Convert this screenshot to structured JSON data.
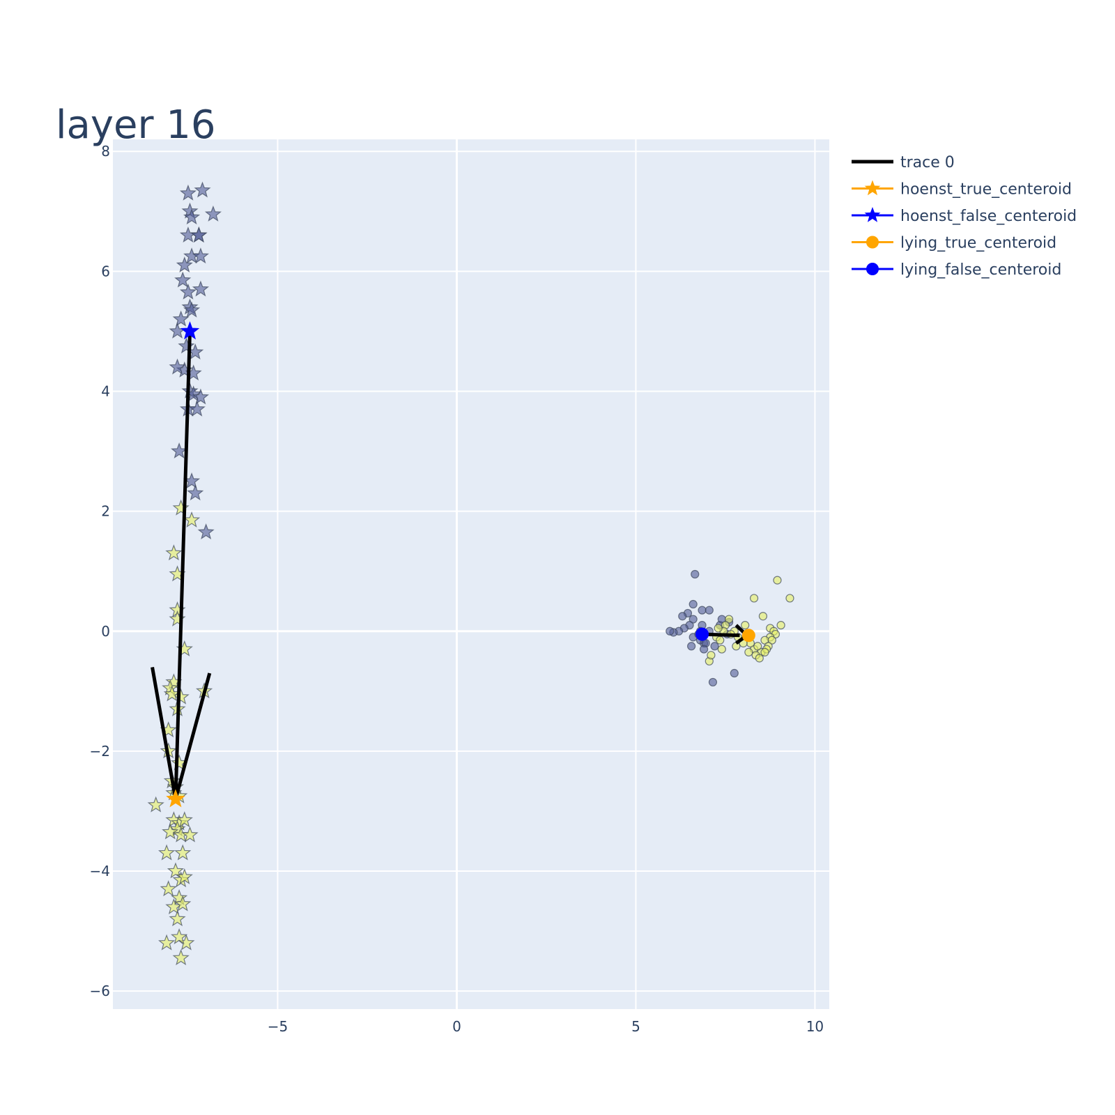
{
  "chart_data": {
    "type": "scatter",
    "title": "layer 16",
    "xlim": [
      -9.6,
      10.4
    ],
    "ylim": [
      -6.3,
      8.2
    ],
    "x_ticks": [
      -5,
      0,
      5,
      10
    ],
    "y_ticks": [
      -6,
      -4,
      -2,
      0,
      2,
      4,
      6,
      8
    ],
    "x_tick_labels": [
      "−5",
      "0",
      "5",
      "10"
    ],
    "y_tick_labels": [
      "−6",
      "−4",
      "−2",
      "0",
      "2",
      "4",
      "6",
      "8"
    ],
    "grid": true,
    "legend_position": "right",
    "plot_background": "#e5ecf6",
    "legend": [
      {
        "name": "trace 0",
        "color": "#000000",
        "marker": "line"
      },
      {
        "name": "hoenst_true_centeroid",
        "color": "#ffa500",
        "marker": "star"
      },
      {
        "name": "hoenst_false_centeroid",
        "color": "#0000ff",
        "marker": "star"
      },
      {
        "name": "lying_true_centeroid",
        "color": "#ffa500",
        "marker": "circle"
      },
      {
        "name": "lying_false_centeroid",
        "color": "#0000ff",
        "marker": "circle"
      }
    ],
    "arrows": [
      {
        "color": "#000000",
        "lines": [
          [
            [
              -7.45,
              5.0
            ],
            [
              -7.85,
              -2.8
            ]
          ],
          [
            [
              -8.5,
              -0.6
            ],
            [
              -7.85,
              -2.8
            ]
          ],
          [
            [
              -6.9,
              -0.7
            ],
            [
              -7.85,
              -2.8
            ]
          ]
        ]
      },
      {
        "color": "#000000",
        "lines": [
          [
            [
              6.85,
              -0.05
            ],
            [
              7.9,
              -0.07
            ]
          ],
          [
            [
              7.8,
              0.1
            ],
            [
              8.1,
              -0.07
            ]
          ],
          [
            [
              7.8,
              -0.2
            ],
            [
              8.1,
              -0.07
            ]
          ]
        ]
      }
    ],
    "honest_false_points": {
      "marker": "star",
      "color": "rgba(80,92,150,0.6)",
      "x": [
        -7.1,
        -7.5,
        -6.8,
        -7.45,
        -7.4,
        -7.2,
        -7.5,
        -7.2,
        -7.4,
        -7.6,
        -7.15,
        -7.65,
        -7.5,
        -7.15,
        -7.45,
        -7.7,
        -7.4,
        -7.8,
        -7.55,
        -7.3,
        -7.6,
        -7.35,
        -7.8,
        -7.45,
        -7.35,
        -7.15,
        -7.5,
        -7.25,
        -7.75,
        -7.4,
        -7.3,
        -7.0
      ],
      "y": [
        7.35,
        7.3,
        6.95,
        7.0,
        6.9,
        6.6,
        6.6,
        6.6,
        6.25,
        6.1,
        6.25,
        5.85,
        5.65,
        5.7,
        5.4,
        5.2,
        5.35,
        5.0,
        4.75,
        4.65,
        4.35,
        4.3,
        4.4,
        4.0,
        3.95,
        3.9,
        3.7,
        3.7,
        3.0,
        2.5,
        2.3,
        1.65
      ]
    },
    "honest_true_points": {
      "marker": "star",
      "color": "rgba(230,240,100,0.6)",
      "x": [
        -7.7,
        -7.4,
        -7.9,
        -7.8,
        -7.8,
        -7.8,
        -7.6,
        -7.9,
        -8.0,
        -7.7,
        -7.95,
        -7.05,
        -7.8,
        -8.05,
        -8.05,
        -7.75,
        -7.95,
        -7.9,
        -7.75,
        -7.85,
        -8.4,
        -7.9,
        -7.75,
        -7.6,
        -7.8,
        -8.0,
        -7.7,
        -7.45,
        -7.65,
        -8.1,
        -7.85,
        -7.7,
        -7.6,
        -8.05,
        -7.75,
        -7.9,
        -7.65,
        -7.8,
        -8.1,
        -7.55,
        -7.75,
        -7.7
      ],
      "y": [
        2.05,
        1.85,
        1.3,
        0.95,
        0.35,
        0.2,
        -0.3,
        -0.85,
        -0.95,
        -1.1,
        -1.05,
        -1.0,
        -1.3,
        -1.65,
        -2.0,
        -2.2,
        -2.5,
        -2.7,
        -2.75,
        -2.6,
        -2.9,
        -3.15,
        -3.2,
        -3.15,
        -3.3,
        -3.35,
        -3.4,
        -3.4,
        -3.7,
        -3.7,
        -4.0,
        -4.15,
        -4.1,
        -4.3,
        -4.45,
        -4.6,
        -4.55,
        -4.8,
        -5.2,
        -5.2,
        -5.1,
        -5.45
      ]
    },
    "lying_false_points": {
      "marker": "circle",
      "color": "rgba(80,92,150,0.6)",
      "x": [
        6.65,
        6.6,
        6.45,
        6.3,
        6.85,
        6.6,
        6.5,
        6.35,
        6.2,
        6.05,
        5.95,
        6.6,
        6.8,
        6.55,
        6.9,
        7.2,
        7.05,
        7.6,
        7.35,
        7.05,
        7.55,
        7.15,
        7.75,
        6.95,
        6.75,
        6.85,
        6.9,
        7.4,
        6.8
      ],
      "y": [
        0.95,
        0.45,
        0.3,
        0.25,
        0.35,
        0.2,
        0.1,
        0.05,
        0.0,
        -0.02,
        0.0,
        -0.1,
        -0.15,
        -0.25,
        -0.2,
        -0.25,
        0.35,
        0.15,
        0.1,
        0.0,
        -0.05,
        -0.85,
        -0.7,
        -0.2,
        -0.05,
        0.1,
        -0.3,
        0.2,
        0.0
      ]
    },
    "lying_true_points": {
      "marker": "circle",
      "color": "rgba(230,240,100,0.6)",
      "x": [
        8.95,
        9.3,
        8.3,
        8.55,
        9.05,
        8.75,
        8.85,
        8.9,
        8.75,
        8.6,
        8.8,
        8.7,
        8.5,
        8.3,
        8.4,
        8.2,
        8.35,
        8.15,
        8.0,
        7.85,
        7.75,
        7.6,
        7.5,
        7.45,
        7.3,
        7.25,
        7.05,
        7.1,
        7.4,
        7.35,
        7.65,
        7.8,
        8.65,
        8.45,
        8.6,
        8.05
      ],
      "y": [
        0.85,
        0.55,
        0.55,
        0.25,
        0.1,
        0.05,
        0.0,
        -0.05,
        -0.1,
        -0.15,
        -0.15,
        -0.25,
        -0.35,
        -0.3,
        -0.25,
        -0.2,
        -0.4,
        -0.35,
        -0.2,
        -0.1,
        0.0,
        0.2,
        0.1,
        0.0,
        0.05,
        -0.1,
        -0.5,
        -0.4,
        -0.3,
        -0.15,
        -0.05,
        -0.25,
        -0.3,
        -0.45,
        -0.35,
        0.1
      ]
    },
    "centroids": [
      {
        "name": "hoenst_true_centeroid",
        "x": -7.85,
        "y": -2.8,
        "marker": "star",
        "color": "#ffa500"
      },
      {
        "name": "hoenst_false_centeroid",
        "x": -7.45,
        "y": 5.0,
        "marker": "star",
        "color": "#0000ff"
      },
      {
        "name": "lying_true_centeroid",
        "x": 8.15,
        "y": -0.07,
        "marker": "circle",
        "color": "#ffa500"
      },
      {
        "name": "lying_false_centeroid",
        "x": 6.85,
        "y": -0.05,
        "marker": "circle",
        "color": "#0000ff"
      }
    ]
  }
}
